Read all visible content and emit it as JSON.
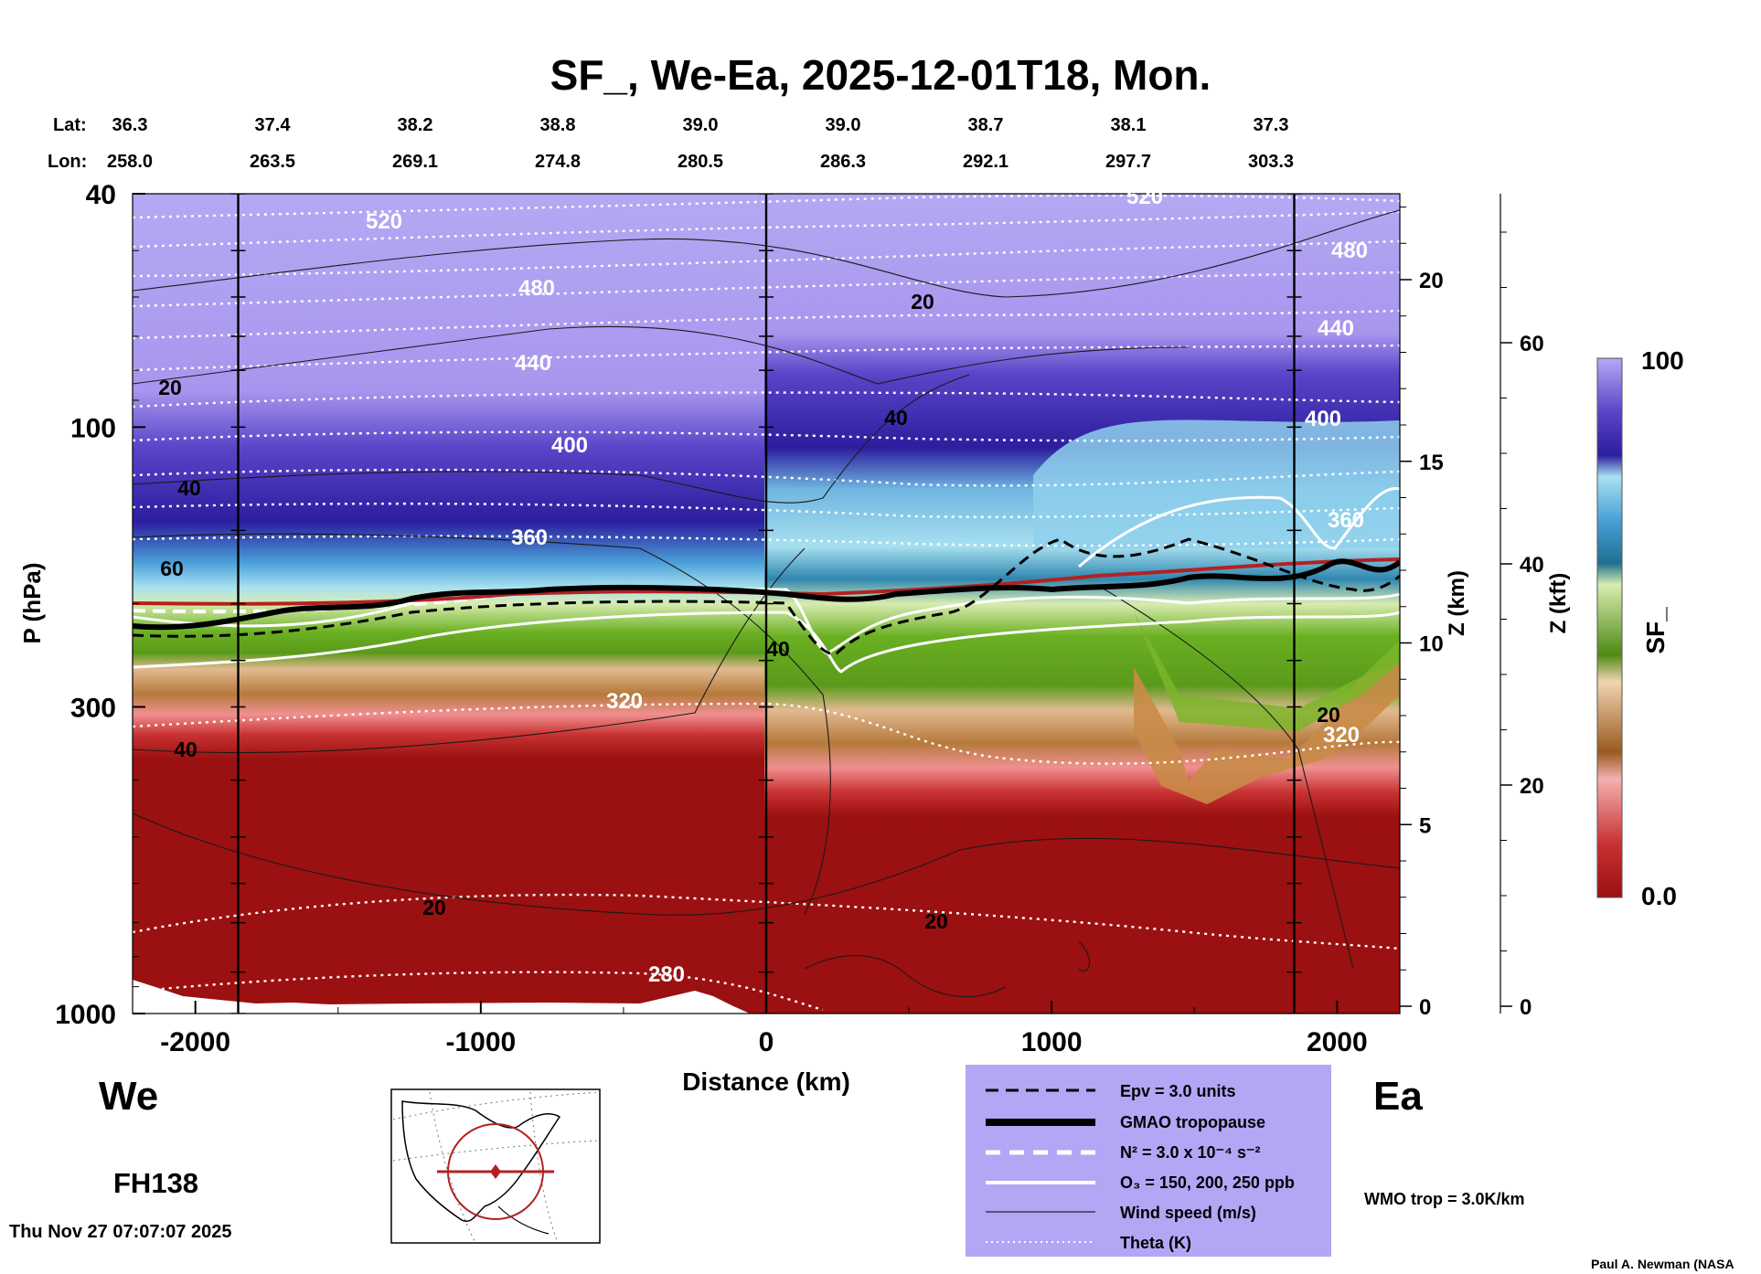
{
  "chart_data": {
    "type": "heatmap",
    "title": "SF_, We-Ea, 2025-12-01T18, Mon.",
    "xlabel": "Distance (km)",
    "ylabel": "P (hPa)",
    "xlim": [
      -2220,
      2220
    ],
    "x_ticks": [
      "-2000",
      "-1000",
      "0",
      "1000",
      "2000"
    ],
    "y_scale": "log",
    "ylim": [
      1000,
      40
    ],
    "y_ticks": [
      "40",
      "100",
      "300",
      "1000"
    ],
    "z_km_label": "Z (km)",
    "z_km_ticks": [
      "20",
      "15",
      "10",
      "5",
      "0"
    ],
    "z_kft_label": "Z (kft)",
    "z_kft_ticks": [
      "60",
      "40",
      "20",
      "0"
    ],
    "lat_label": "Lat:",
    "lon_label": "Lon:",
    "lat_values": [
      "36.3",
      "37.4",
      "38.2",
      "38.8",
      "39.0",
      "39.0",
      "38.7",
      "38.1",
      "37.3"
    ],
    "lon_values": [
      "258.0",
      "263.5",
      "269.1",
      "274.8",
      "280.5",
      "286.3",
      "292.1",
      "297.7",
      "303.3"
    ],
    "west_label": "We",
    "east_label": "Ea",
    "forecast_hour": "FH138",
    "colorbar": {
      "label": "SF_",
      "max_label": "100",
      "min_label": "0.0"
    },
    "theta_contours": [
      {
        "label": "520",
        "p": 45
      },
      {
        "label": "480",
        "p": 58
      },
      {
        "label": "440",
        "p": 72
      },
      {
        "label": "400",
        "p": 110
      },
      {
        "label": "360",
        "p": 170
      },
      {
        "label": "320",
        "p": 300
      },
      {
        "label": "280",
        "p": 860
      }
    ],
    "theta_labels_right": [
      "520",
      "480",
      "440",
      "400",
      "360",
      "320"
    ],
    "wind_labels": [
      "20",
      "40",
      "60",
      "40",
      "40",
      "20",
      "20",
      "40",
      "20",
      "20"
    ],
    "legend": {
      "items": [
        {
          "label": "Epv = 3.0 units",
          "style": "dashed-black"
        },
        {
          "label": "GMAO tropopause",
          "style": "thick-black"
        },
        {
          "label": "N² = 3.0 x 10⁻⁴ s⁻²",
          "style": "dashed-white"
        },
        {
          "label": "O₃ = 150, 200, 250 ppb",
          "style": "solid-white"
        },
        {
          "label": "Wind speed (m/s)",
          "style": "thin-black"
        },
        {
          "label": "Theta (K)",
          "style": "dotted-white"
        }
      ],
      "background": "#b3a6f5"
    },
    "wmo_label": "WMO trop = 3.0K/km",
    "wmo_color": "#b22222"
  },
  "footer": {
    "timestamp": "Thu Nov 27 07:07:07 2025",
    "credit": "Paul A. Newman (NASA"
  }
}
